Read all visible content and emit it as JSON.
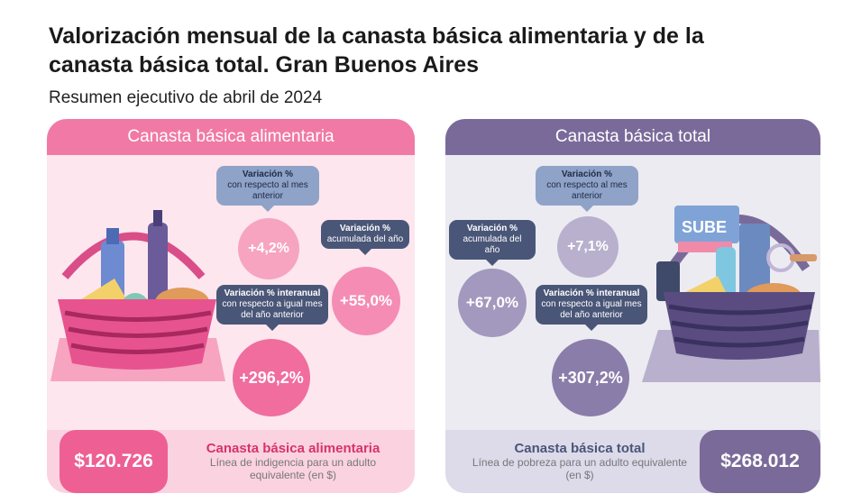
{
  "header": {
    "title": "Valorización mensual de la canasta básica alimentaria y de la canasta básica total. Gran Buenos Aires",
    "subtitle": "Resumen ejecutivo de abril de 2024"
  },
  "cba": {
    "heading": "Canasta básica alimentaria",
    "monthly": {
      "title": "Variación %",
      "desc": "con respecto al mes anterior",
      "value": "+4,2%"
    },
    "cumulative": {
      "title": "Variación %",
      "desc": "acumulada del año",
      "value": "+55,0%"
    },
    "yoy": {
      "title": "Variación % interanual",
      "desc": "con respecto a igual mes del año anterior",
      "value": "+296,2%"
    },
    "amount": "$120.726",
    "footer_title": "Canasta básica alimentaria",
    "footer_desc": "Línea de indigencia para un adulto equivalente (en $)"
  },
  "cbt": {
    "heading": "Canasta básica total",
    "monthly": {
      "title": "Variación %",
      "desc": "con respecto al mes anterior",
      "value": "+7,1%"
    },
    "cumulative": {
      "title": "Variación %",
      "desc": "acumulada del año",
      "value": "+67,0%"
    },
    "yoy": {
      "title": "Variación % interanual",
      "desc": "con respecto a igual mes del año anterior",
      "value": "+307,2%"
    },
    "amount": "$268.012",
    "footer_title": "Canasta básica total",
    "footer_desc": "Línea de pobreza para un adulto equivalente (en $)",
    "card_text": "SUBE"
  },
  "colors": {
    "cba_accent": "#f07aa5",
    "cbt_accent": "#7a6a9a",
    "label_dark": "#4a5677",
    "label_light": "#8fa2c8"
  }
}
